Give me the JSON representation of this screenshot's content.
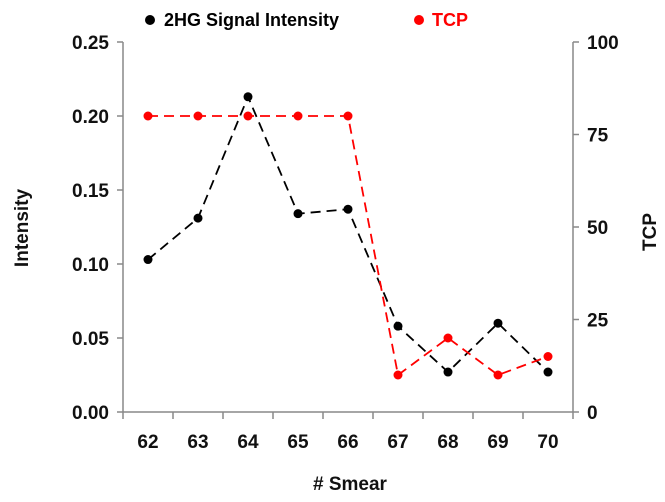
{
  "chart_data": {
    "type": "line",
    "title": "",
    "xlabel": "# Smear",
    "ylabel": "Intensity",
    "y2label": "TCP",
    "x": [
      62,
      63,
      64,
      65,
      66,
      67,
      68,
      69,
      70
    ],
    "xlim": [
      61.5,
      70.5
    ],
    "ylim": [
      0,
      0.25
    ],
    "y2lim": [
      0,
      100
    ],
    "yticks": [
      "0.00",
      "0.05",
      "0.10",
      "0.15",
      "0.20",
      "0.25"
    ],
    "y2ticks": [
      "0",
      "25",
      "50",
      "75",
      "100"
    ],
    "grid": false,
    "legend_position": "top",
    "series": [
      {
        "name": "2HG Signal Intensity",
        "axis": "left",
        "color": "#000000",
        "line_style": "dashed",
        "marker": "circle",
        "values": [
          0.103,
          0.131,
          0.213,
          0.134,
          0.137,
          0.058,
          0.027,
          0.06,
          0.027
        ]
      },
      {
        "name": "TCP",
        "axis": "right",
        "color": "#ff0000",
        "line_style": "dashed",
        "marker": "circle",
        "values": [
          80,
          80,
          80,
          80,
          80,
          10,
          20,
          10,
          15
        ]
      }
    ]
  }
}
